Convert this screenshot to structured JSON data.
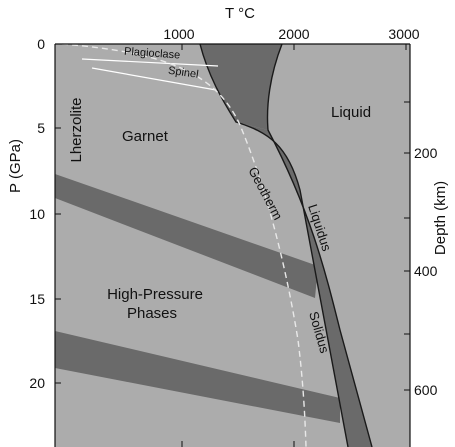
{
  "diagram": {
    "top_axis": {
      "title": "T °C",
      "ticks": [
        "1000",
        "2000",
        "3000"
      ]
    },
    "left_axis": {
      "title": "P (GPa)",
      "ticks": [
        "0",
        "5",
        "10",
        "15",
        "20"
      ]
    },
    "right_axis": {
      "title": "Depth (km)",
      "ticks": [
        "200",
        "400",
        "600"
      ]
    },
    "labels": {
      "plagioclase": "Plagioclase",
      "spinel": "Spinel",
      "lherzolite": "Lherzolite",
      "garnet": "Garnet",
      "liquid": "Liquid",
      "geotherm": "Geotherm",
      "liquidus": "Liquidus",
      "solidus": "Solidus",
      "hp_line1": "High-Pressure",
      "hp_line2": "Phases"
    },
    "colors": {
      "background": "#acacac",
      "dark_band": "#6a6a6a",
      "boundary": "#1a1a1a",
      "geotherm": "#e8e8e8"
    }
  }
}
